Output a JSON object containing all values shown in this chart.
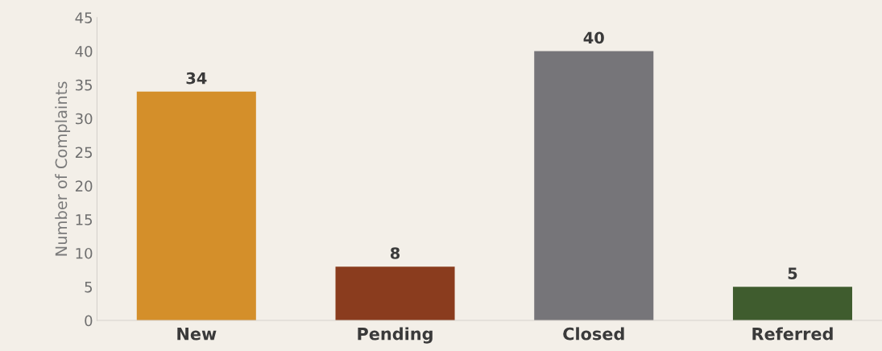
{
  "chart_data": {
    "type": "bar",
    "ylabel": "Number of Complaints",
    "categories": [
      "New",
      "Pending",
      "Closed",
      "Referred"
    ],
    "values": [
      34,
      8,
      40,
      5
    ],
    "colors": [
      "#d48f2a",
      "#8a3c1e",
      "#767579",
      "#3f5c2e"
    ],
    "ylim": [
      0,
      45
    ],
    "yticks": [
      0,
      5,
      10,
      15,
      20,
      25,
      30,
      35,
      40,
      45
    ],
    "data_labels": true,
    "grid": false,
    "legend": false
  }
}
